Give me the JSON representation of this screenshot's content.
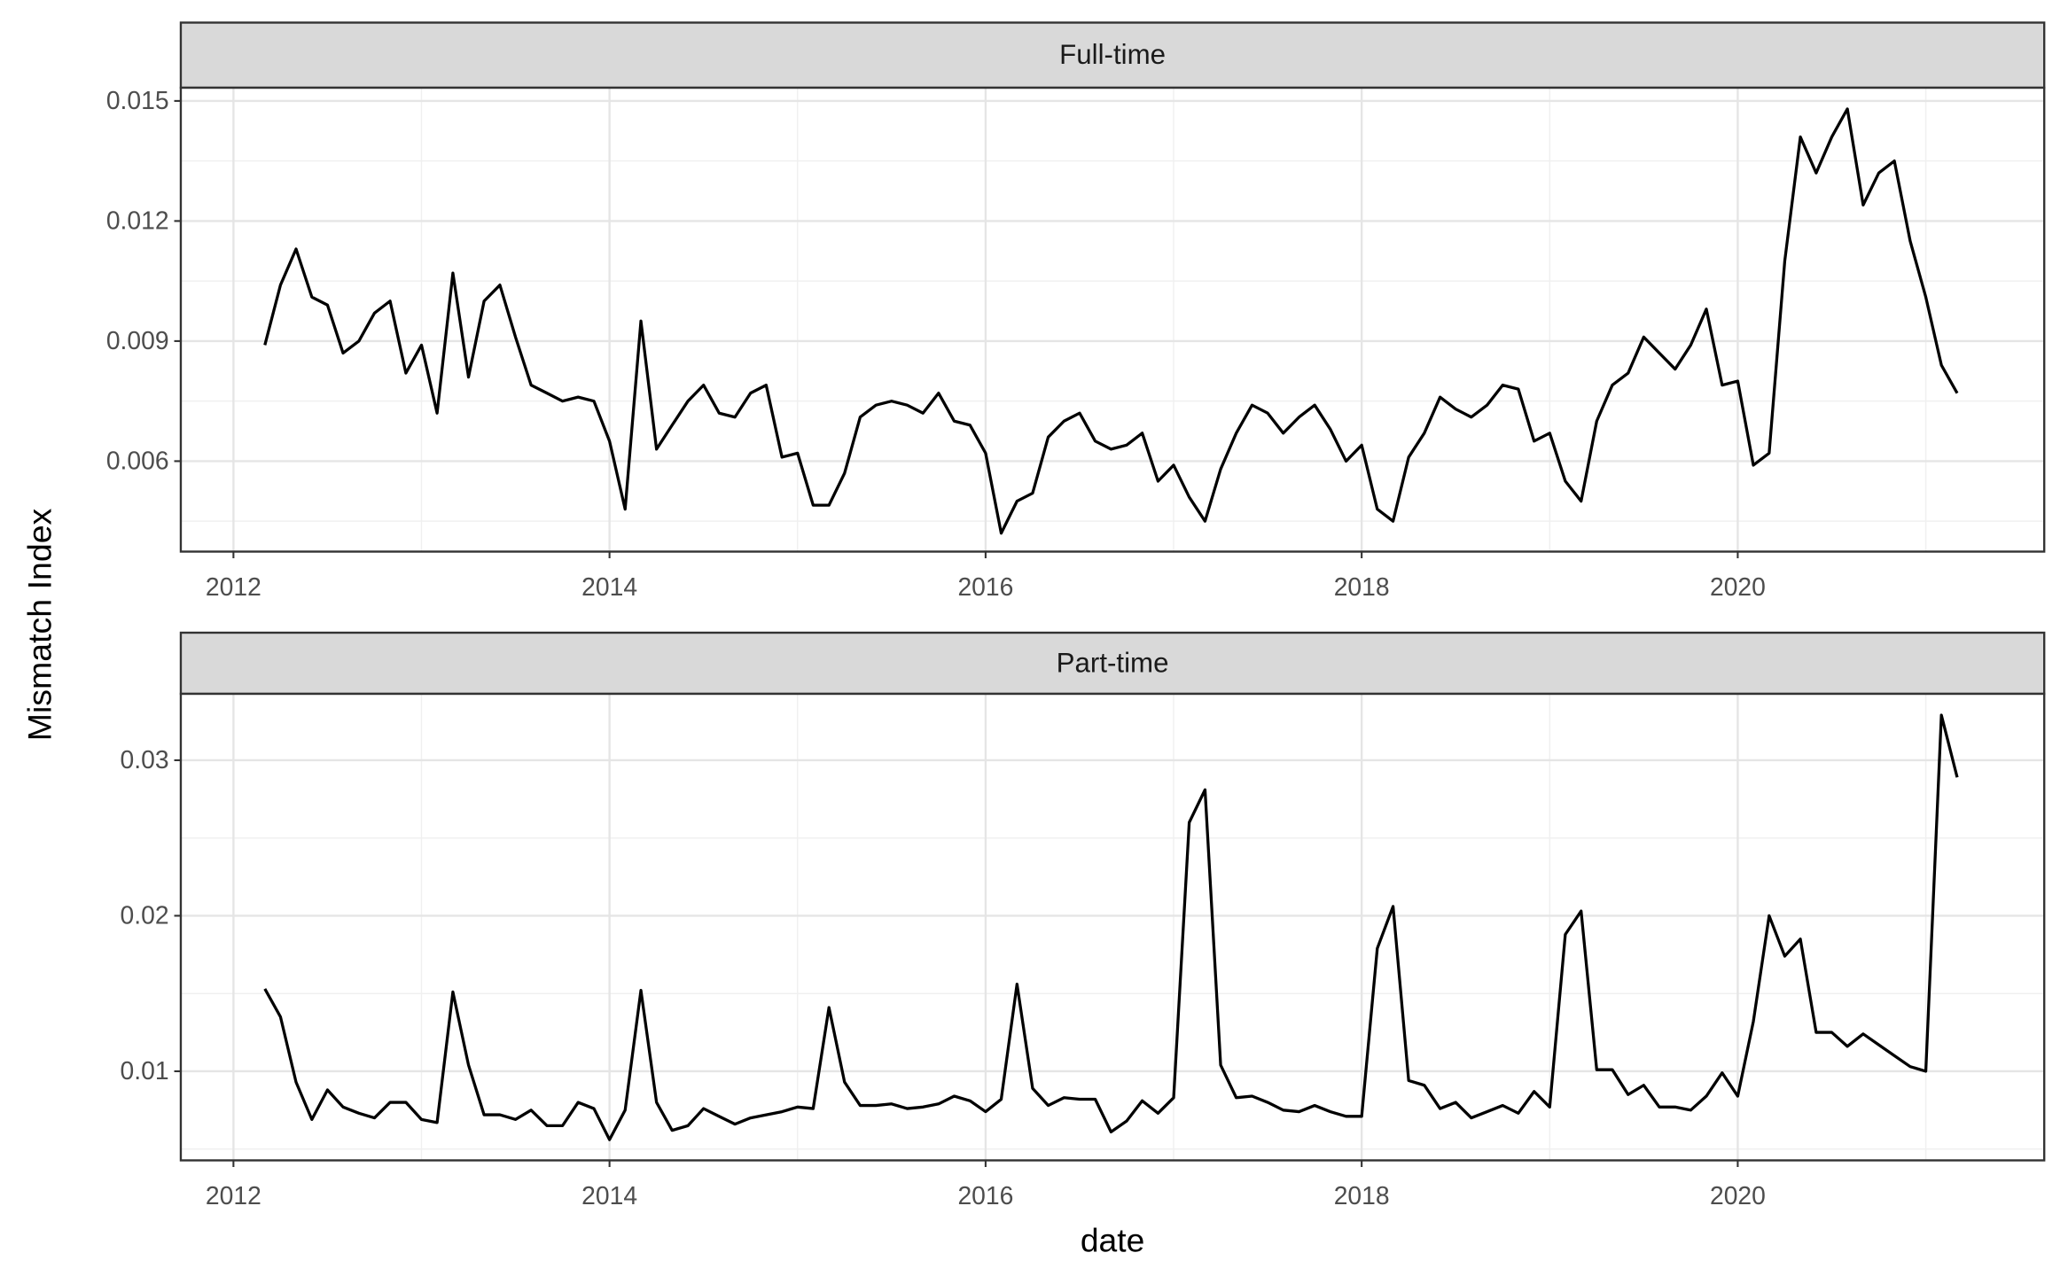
{
  "chart_data": {
    "type": "line",
    "x_label": "date",
    "y_label": "Mismatch Index",
    "color": "#000000",
    "x": [
      2012.167,
      2012.25,
      2012.333,
      2012.417,
      2012.5,
      2012.583,
      2012.667,
      2012.75,
      2012.833,
      2012.917,
      2013,
      2013.083,
      2013.167,
      2013.25,
      2013.333,
      2013.417,
      2013.5,
      2013.583,
      2013.667,
      2013.75,
      2013.833,
      2013.917,
      2014,
      2014.083,
      2014.167,
      2014.25,
      2014.333,
      2014.417,
      2014.5,
      2014.583,
      2014.667,
      2014.75,
      2014.833,
      2014.917,
      2015,
      2015.083,
      2015.167,
      2015.25,
      2015.333,
      2015.417,
      2015.5,
      2015.583,
      2015.667,
      2015.75,
      2015.833,
      2015.917,
      2016,
      2016.083,
      2016.167,
      2016.25,
      2016.333,
      2016.417,
      2016.5,
      2016.583,
      2016.667,
      2016.75,
      2016.833,
      2016.917,
      2017,
      2017.083,
      2017.167,
      2017.25,
      2017.333,
      2017.417,
      2017.5,
      2017.583,
      2017.667,
      2017.75,
      2017.833,
      2017.917,
      2018,
      2018.083,
      2018.167,
      2018.25,
      2018.333,
      2018.417,
      2018.5,
      2018.583,
      2018.667,
      2018.75,
      2018.833,
      2018.917,
      2019,
      2019.083,
      2019.167,
      2019.25,
      2019.333,
      2019.417,
      2019.5,
      2019.583,
      2019.667,
      2019.75,
      2019.833,
      2019.917,
      2020,
      2020.083,
      2020.167,
      2020.25,
      2020.333,
      2020.417,
      2020.5,
      2020.583,
      2020.667,
      2020.75,
      2020.833,
      2020.917,
      2021,
      2021.083,
      2021.167
    ],
    "xlim": [
      2011.72,
      2021.63
    ],
    "xticks": [
      2012,
      2014,
      2016,
      2018,
      2020
    ],
    "grid": true,
    "facets": [
      {
        "title": "Full-time",
        "ylim": [
          0.00374,
          0.01533
        ],
        "yticks": [
          0.006,
          0.009,
          0.012,
          0.015
        ],
        "values": [
          0.0089,
          0.0104,
          0.0113,
          0.0101,
          0.0099,
          0.0087,
          0.009,
          0.0097,
          0.01,
          0.0082,
          0.0089,
          0.0072,
          0.0107,
          0.0081,
          0.01,
          0.0104,
          0.0091,
          0.0079,
          0.0077,
          0.0075,
          0.0076,
          0.0075,
          0.0065,
          0.0048,
          0.0095,
          0.0063,
          0.0069,
          0.0075,
          0.0079,
          0.0072,
          0.0071,
          0.0077,
          0.0079,
          0.0061,
          0.0062,
          0.0049,
          0.0049,
          0.0057,
          0.0071,
          0.0074,
          0.0075,
          0.0074,
          0.0072,
          0.0077,
          0.007,
          0.0069,
          0.0062,
          0.0042,
          0.005,
          0.0052,
          0.0066,
          0.007,
          0.0072,
          0.0065,
          0.0063,
          0.0064,
          0.0067,
          0.0055,
          0.0059,
          0.0051,
          0.0045,
          0.0058,
          0.0067,
          0.0074,
          0.0072,
          0.0067,
          0.0071,
          0.0074,
          0.0068,
          0.006,
          0.0064,
          0.0048,
          0.0045,
          0.0061,
          0.0067,
          0.0076,
          0.0073,
          0.0071,
          0.0074,
          0.0079,
          0.0078,
          0.0065,
          0.0067,
          0.0055,
          0.005,
          0.007,
          0.0079,
          0.0082,
          0.0091,
          0.0087,
          0.0083,
          0.0089,
          0.0098,
          0.0079,
          0.008,
          0.0059,
          0.0062,
          0.011,
          0.0141,
          0.0132,
          0.0141,
          0.0148,
          0.0124,
          0.0132,
          0.0135,
          0.0115,
          0.0101,
          0.0084,
          0.0077
        ]
      },
      {
        "title": "Part-time",
        "ylim": [
          0.00427,
          0.03427
        ],
        "yticks": [
          0.01,
          0.02,
          0.03
        ],
        "values": [
          0.0153,
          0.0135,
          0.0093,
          0.0069,
          0.0088,
          0.0077,
          0.0073,
          0.007,
          0.008,
          0.008,
          0.0069,
          0.0067,
          0.0151,
          0.0104,
          0.0072,
          0.0072,
          0.0069,
          0.0075,
          0.0065,
          0.0065,
          0.008,
          0.0076,
          0.0056,
          0.0075,
          0.0152,
          0.008,
          0.0062,
          0.0065,
          0.0076,
          0.0071,
          0.0066,
          0.007,
          0.0072,
          0.0074,
          0.0077,
          0.0076,
          0.0141,
          0.0093,
          0.0078,
          0.0078,
          0.0079,
          0.0076,
          0.0077,
          0.0079,
          0.0084,
          0.0081,
          0.0074,
          0.0082,
          0.0156,
          0.0089,
          0.0078,
          0.0083,
          0.0082,
          0.0082,
          0.0061,
          0.0068,
          0.0081,
          0.0073,
          0.0083,
          0.026,
          0.0281,
          0.0104,
          0.0083,
          0.0084,
          0.008,
          0.0075,
          0.0074,
          0.0078,
          0.0074,
          0.0071,
          0.0071,
          0.0179,
          0.0206,
          0.0094,
          0.0091,
          0.0076,
          0.008,
          0.007,
          0.0074,
          0.0078,
          0.0073,
          0.0087,
          0.0077,
          0.0188,
          0.0203,
          0.0101,
          0.0101,
          0.0085,
          0.0091,
          0.0077,
          0.0077,
          0.0075,
          0.0084,
          0.0099,
          0.0084,
          0.0132,
          0.02,
          0.0174,
          0.0185,
          0.0125,
          0.0125,
          0.0116,
          0.0124,
          0.0117,
          0.011,
          0.0103,
          0.01,
          0.0329,
          0.0289
        ]
      }
    ]
  }
}
